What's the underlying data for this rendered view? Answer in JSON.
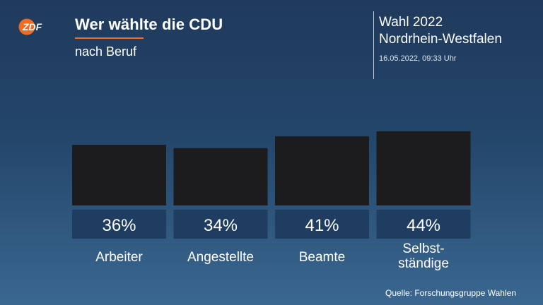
{
  "header": {
    "logo_text": "ZDF",
    "title": "Wer wählte die CDU",
    "subtitle": "nach Beruf",
    "election_line1": "Wahl 2022",
    "election_line2": "Nordrhein-Westfalen",
    "timestamp": "16.05.2022, 09:33 Uhr"
  },
  "colors": {
    "bar": "#1c1c1e",
    "label_box": "#1e3d60",
    "accent": "#f26b21"
  },
  "chart_data": {
    "type": "bar",
    "title": "Wer wählte die CDU",
    "subtitle": "nach Beruf",
    "categories": [
      "Arbeiter",
      "Angestellte",
      "Beamte",
      "Selbst-\nständige"
    ],
    "values": [
      36,
      34,
      41,
      44
    ],
    "value_labels": [
      "36%",
      "34%",
      "41%",
      "44%"
    ],
    "ylim": [
      0,
      44
    ],
    "grid": false,
    "legend": "none"
  },
  "footer": {
    "source": "Quelle: Forschungsgruppe Wahlen"
  }
}
